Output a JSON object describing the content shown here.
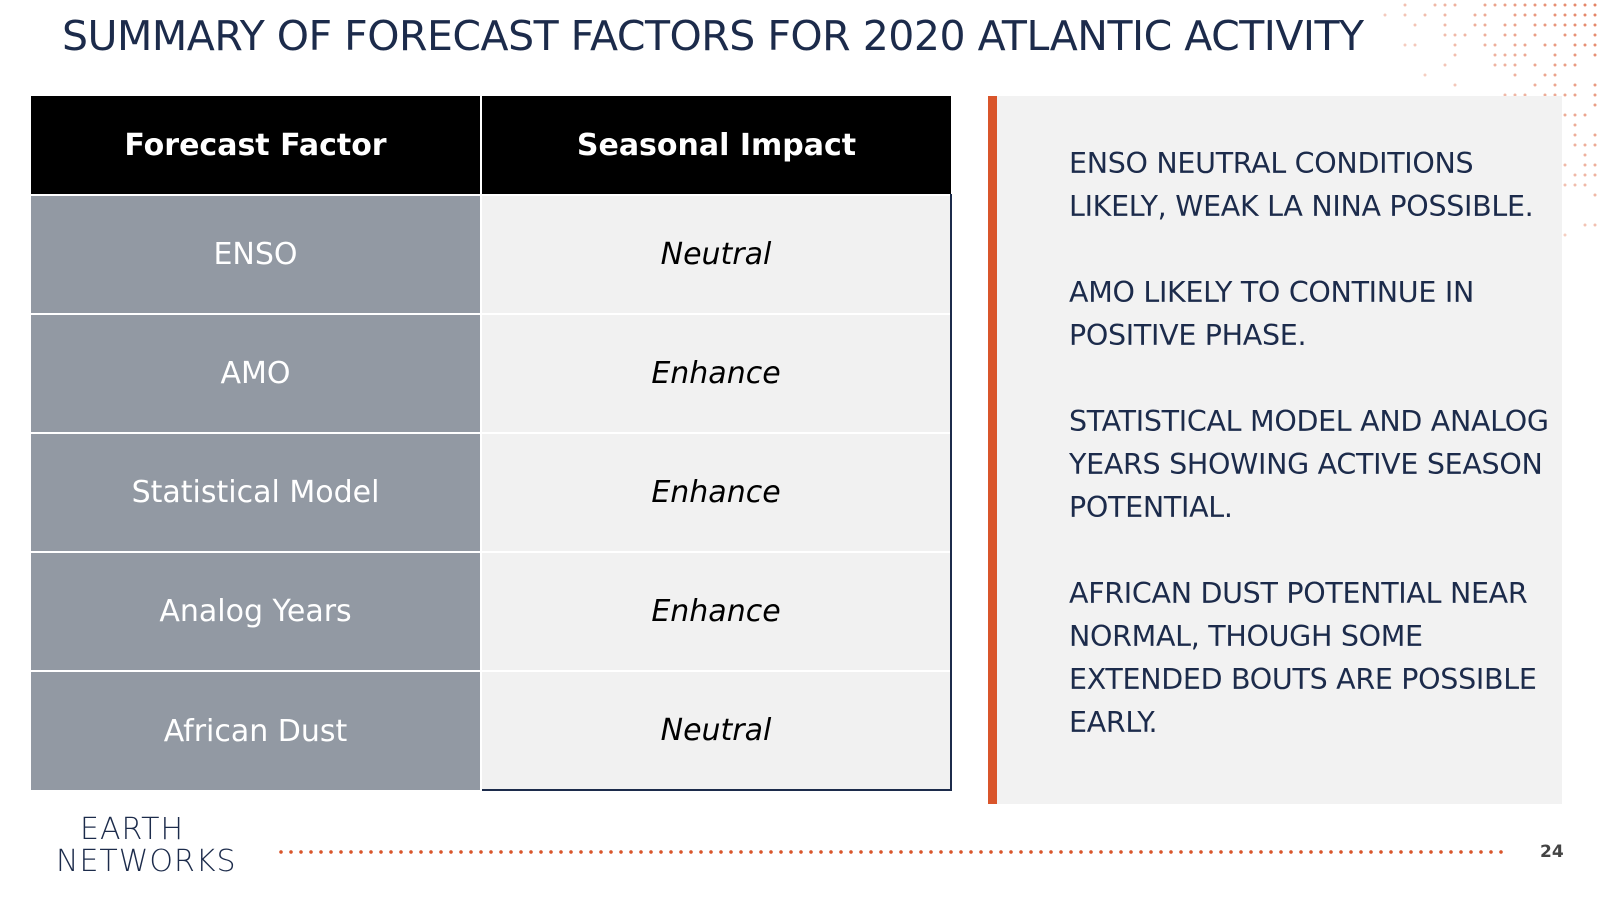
{
  "slide": {
    "title": "SUMMARY OF FORECAST FACTORS FOR 2020 ATLANTIC ACTIVITY",
    "page_number": "24",
    "accent_color": "#d9552b",
    "title_color": "#1c2b4b"
  },
  "table": {
    "headers": [
      "Forecast Factor",
      "Seasonal Impact"
    ],
    "rows": [
      {
        "factor": "ENSO",
        "impact": "Neutral"
      },
      {
        "factor": "AMO",
        "impact": "Enhance"
      },
      {
        "factor": "Statistical Model",
        "impact": "Enhance"
      },
      {
        "factor": "Analog Years",
        "impact": "Enhance"
      },
      {
        "factor": "African Dust",
        "impact": "Neutral"
      }
    ]
  },
  "notes": [
    "ENSO NEUTRAL CONDITIONS LIKELY, WEAK LA NINA POSSIBLE.",
    "AMO LIKELY TO CONTINUE IN POSITIVE PHASE.",
    "STATISTICAL MODEL AND ANALOG YEARS SHOWING ACTIVE  SEASON POTENTIAL.",
    "AFRICAN DUST POTENTIAL NEAR NORMAL, THOUGH SOME EXTENDED BOUTS ARE POSSIBLE EARLY."
  ],
  "logo": {
    "line1": "EARTH",
    "line2": "NETWORKS"
  }
}
